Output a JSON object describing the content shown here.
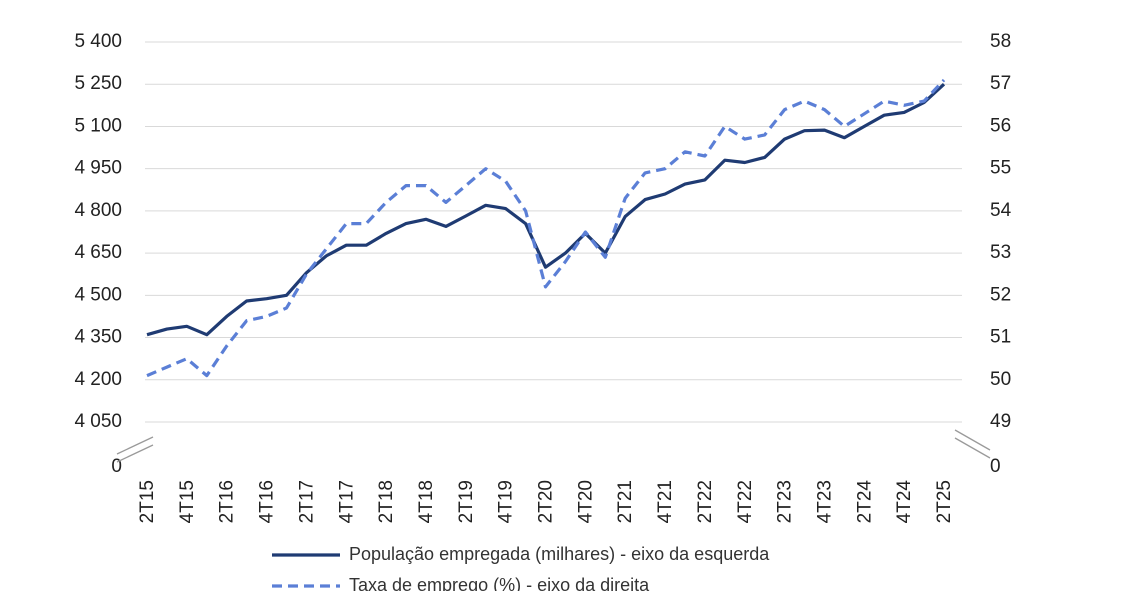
{
  "chart_data": {
    "type": "line",
    "x": [
      "2T15",
      "3T15",
      "4T15",
      "1T16",
      "2T16",
      "3T16",
      "4T16",
      "1T17",
      "2T17",
      "3T17",
      "4T17",
      "1T18",
      "2T18",
      "3T18",
      "4T18",
      "1T19",
      "2T19",
      "3T19",
      "4T19",
      "1T20",
      "2T20",
      "3T20",
      "4T20",
      "1T21",
      "2T21",
      "3T21",
      "4T21",
      "1T22",
      "2T22",
      "3T22",
      "4T22",
      "1T23",
      "2T23",
      "3T23",
      "4T23",
      "1T24",
      "2T24",
      "3T24",
      "4T24",
      "1T25",
      "2T25"
    ],
    "x_tick_labels": [
      "2T15",
      "4T15",
      "2T16",
      "4T16",
      "2T17",
      "4T17",
      "2T18",
      "4T18",
      "2T19",
      "4T19",
      "2T20",
      "4T20",
      "2T21",
      "4T21",
      "2T22",
      "4T22",
      "2T23",
      "4T23",
      "2T24",
      "4T24",
      "2T25"
    ],
    "y_left": {
      "ticks": [
        "5 400",
        "5 250",
        "5 100",
        "4 950",
        "4 800",
        "4 650",
        "4 500",
        "4 350",
        "4 200",
        "4 050",
        "0"
      ],
      "range": [
        4050,
        5400
      ],
      "axis_break": true
    },
    "y_right": {
      "ticks": [
        "58",
        "57",
        "56",
        "55",
        "54",
        "53",
        "52",
        "51",
        "50",
        "49",
        "0"
      ],
      "range": [
        49,
        58
      ],
      "axis_break": true
    },
    "grid": "horizontal",
    "legend_position": "bottom",
    "series": [
      {
        "name": "População empregada (milhares) - eixo da esquerda",
        "axis": "left",
        "style": "solid",
        "color": "#1f3b73",
        "values": [
          4360,
          4380,
          4390,
          4360,
          4425,
          4480,
          4488,
          4500,
          4580,
          4640,
          4678,
          4678,
          4720,
          4755,
          4770,
          4745,
          4782,
          4820,
          4808,
          4755,
          4600,
          4650,
          4720,
          4650,
          4780,
          4840,
          4860,
          4895,
          4910,
          4980,
          4972,
          4990,
          5055,
          5085,
          5087,
          5060,
          5100,
          5140,
          5150,
          5185,
          5250
        ]
      },
      {
        "name": "Taxa de emprego (%) - eixo da direita",
        "axis": "right",
        "style": "dashed",
        "color": "#5b7fd6",
        "values": [
          50.1,
          50.3,
          50.5,
          50.1,
          50.8,
          51.4,
          51.5,
          51.7,
          52.5,
          53.1,
          53.7,
          53.7,
          54.2,
          54.6,
          54.6,
          54.2,
          54.6,
          55.0,
          54.7,
          54.0,
          52.2,
          52.8,
          53.5,
          52.9,
          54.3,
          54.9,
          55.0,
          55.4,
          55.3,
          56.0,
          55.7,
          55.8,
          56.4,
          56.6,
          56.4,
          56.0,
          56.3,
          56.6,
          56.5,
          56.6,
          57.1
        ]
      }
    ]
  }
}
